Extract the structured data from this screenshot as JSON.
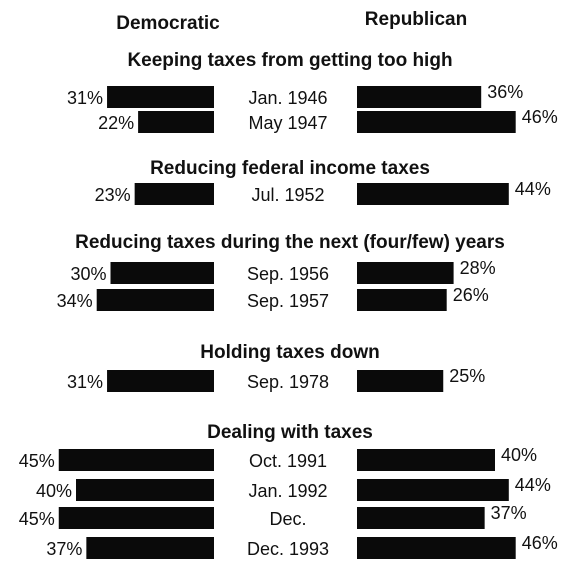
{
  "columns": {
    "left": "Democratic",
    "right": "Republican"
  },
  "colors": {
    "bar": "#0a0a0a",
    "text": "#111111",
    "background": "#ffffff"
  },
  "chart_data": {
    "type": "bar",
    "orientation": "horizontal-paired",
    "series": [
      {
        "name": "Democratic",
        "side": "left"
      },
      {
        "name": "Republican",
        "side": "right"
      }
    ],
    "value_unit": "%",
    "groups": [
      {
        "title": "Keeping taxes from getting too high",
        "rows": [
          {
            "date": "Jan. 1946",
            "democratic": 31,
            "republican": 36,
            "democratic_label": "31%",
            "republican_label": "36%"
          },
          {
            "date": "May 1947",
            "democratic": 22,
            "republican": 46,
            "democratic_label": "22%",
            "republican_label": "46%"
          }
        ]
      },
      {
        "title": "Reducing federal income taxes",
        "rows": [
          {
            "date": "Jul. 1952",
            "democratic": 23,
            "republican": 44,
            "democratic_label": "23%",
            "republican_label": "44%"
          }
        ]
      },
      {
        "title": "Reducing taxes during the next (four/few) years",
        "rows": [
          {
            "date": "Sep. 1956",
            "democratic": 30,
            "republican": 28,
            "democratic_label": "30%",
            "republican_label": "28%"
          },
          {
            "date": "Sep. 1957",
            "democratic": 34,
            "republican": 26,
            "democratic_label": "34%",
            "republican_label": "26%"
          }
        ]
      },
      {
        "title": "Holding taxes down",
        "rows": [
          {
            "date": "Sep. 1978",
            "democratic": 31,
            "republican": 25,
            "democratic_label": "31%",
            "republican_label": "25%"
          }
        ]
      },
      {
        "title": "Dealing with taxes",
        "rows": [
          {
            "date": "Oct. 1991",
            "democratic": 45,
            "republican": 40,
            "democratic_label": "45%",
            "republican_label": "40%"
          },
          {
            "date": "Jan. 1992",
            "democratic": 40,
            "republican": 44,
            "democratic_label": "40%",
            "republican_label": "44%"
          },
          {
            "date": "Dec.",
            "democratic": 45,
            "republican": 37,
            "democratic_label": "45%",
            "republican_label": "37%"
          },
          {
            "date": "Dec. 1993",
            "democratic": 37,
            "republican": 46,
            "democratic_label": "37%",
            "republican_label": "46%"
          }
        ]
      }
    ]
  }
}
